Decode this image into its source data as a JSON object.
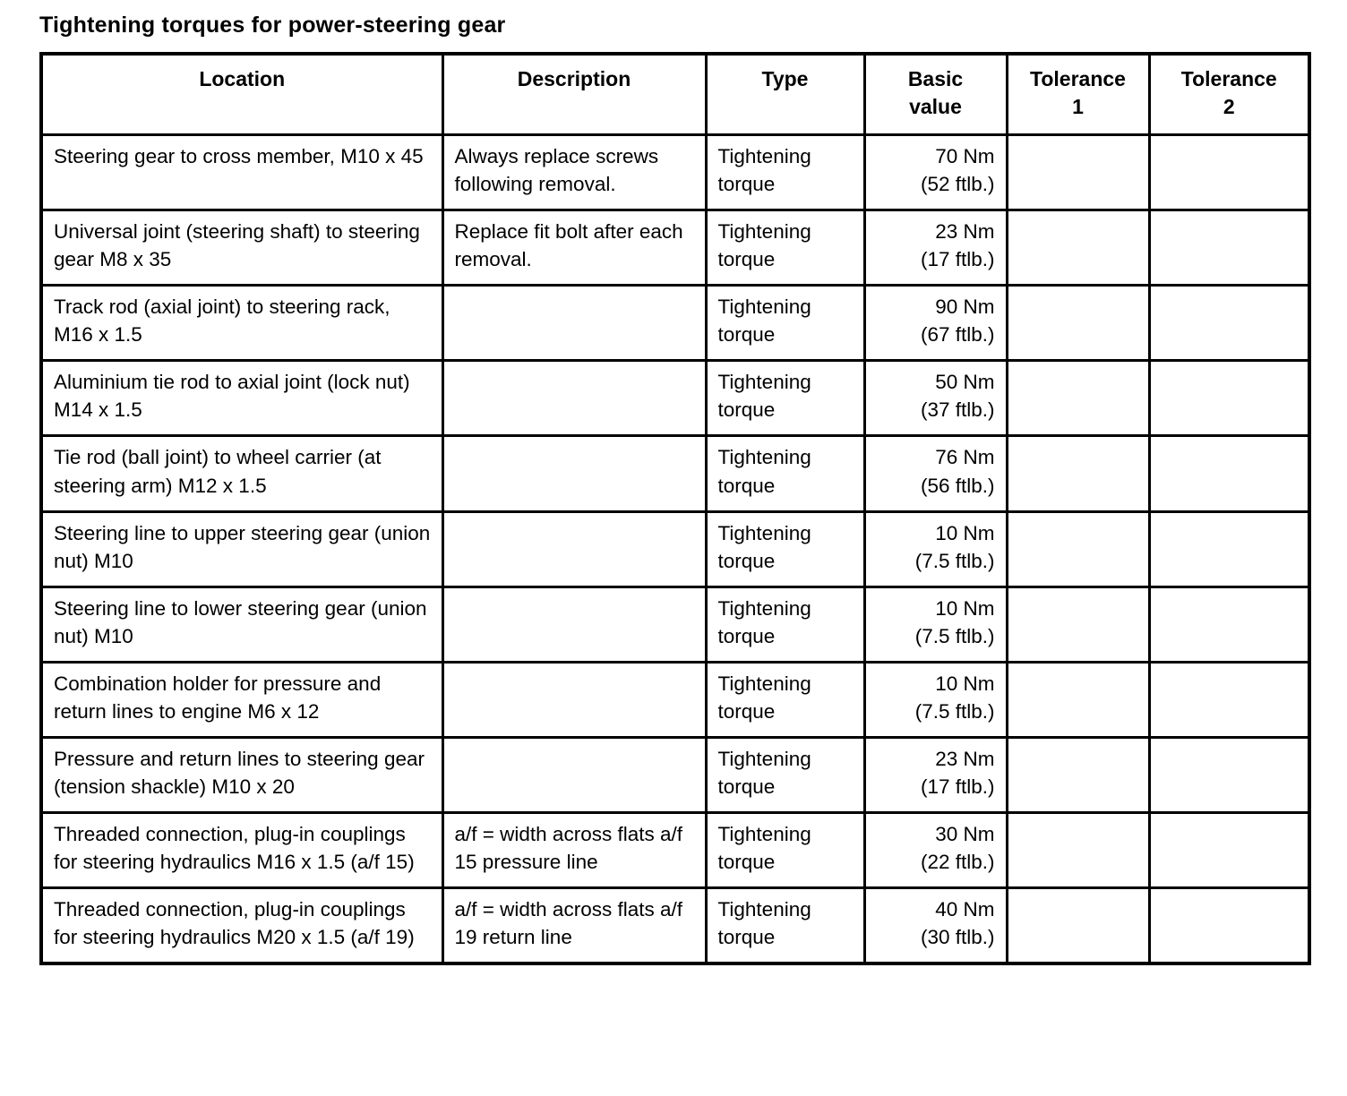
{
  "page": {
    "title": "Tightening torques for power-steering gear"
  },
  "table": {
    "headers": [
      "Location",
      "Description",
      "Type",
      "Basic\nvalue",
      "Tolerance\n1",
      "Tolerance\n2"
    ],
    "rows": [
      {
        "location": "Steering gear to cross member, M10 x 45",
        "description": "Always replace screws following removal.",
        "type": "Tightening\ntorque",
        "basic_value": "70 Nm\n(52 ftlb.)",
        "tolerance_1": "",
        "tolerance_2": ""
      },
      {
        "location": "Universal joint (steering shaft) to steering gear M8 x 35",
        "description": "Replace fit bolt after each removal.",
        "type": "Tightening\ntorque",
        "basic_value": "23 Nm\n(17 ftlb.)",
        "tolerance_1": "",
        "tolerance_2": ""
      },
      {
        "location": "Track rod (axial joint) to steering rack, M16 x 1.5",
        "description": "",
        "type": "Tightening\ntorque",
        "basic_value": "90 Nm\n(67 ftlb.)",
        "tolerance_1": "",
        "tolerance_2": ""
      },
      {
        "location": "Aluminium tie rod to axial joint (lock nut) M14 x 1.5",
        "description": "",
        "type": "Tightening\ntorque",
        "basic_value": "50 Nm\n(37 ftlb.)",
        "tolerance_1": "",
        "tolerance_2": ""
      },
      {
        "location": "Tie rod (ball joint) to wheel carrier (at steering arm) M12 x 1.5",
        "description": "",
        "type": "Tightening\ntorque",
        "basic_value": "76 Nm\n(56 ftlb.)",
        "tolerance_1": "",
        "tolerance_2": ""
      },
      {
        "location": "Steering line to upper steering gear (union nut) M10",
        "description": "",
        "type": "Tightening\ntorque",
        "basic_value": "10 Nm\n(7.5 ftlb.)",
        "tolerance_1": "",
        "tolerance_2": ""
      },
      {
        "location": "Steering line to lower steering gear (union nut) M10",
        "description": "",
        "type": "Tightening\ntorque",
        "basic_value": "10 Nm\n(7.5 ftlb.)",
        "tolerance_1": "",
        "tolerance_2": ""
      },
      {
        "location": "Combination holder for pressure and return lines to engine M6 x 12",
        "description": "",
        "type": "Tightening\ntorque",
        "basic_value": "10 Nm\n(7.5 ftlb.)",
        "tolerance_1": "",
        "tolerance_2": ""
      },
      {
        "location": "Pressure and return lines to steering gear (tension shackle) M10 x 20",
        "description": "",
        "type": "Tightening\ntorque",
        "basic_value": "23 Nm\n(17 ftlb.)",
        "tolerance_1": "",
        "tolerance_2": ""
      },
      {
        "location": "Threaded connection, plug-in couplings for steering hydraulics M16 x 1.5 (a/f 15)",
        "description": "a/f = width across flats a/f 15 pressure line",
        "type": "Tightening\ntorque",
        "basic_value": "30 Nm\n(22 ftlb.)",
        "tolerance_1": "",
        "tolerance_2": ""
      },
      {
        "location": "Threaded connection, plug-in couplings for steering hydraulics M20 x 1.5 (a/f 19)",
        "description": "a/f = width across flats a/f 19 return line",
        "type": "Tightening\ntorque",
        "basic_value": "40 Nm\n(30 ftlb.)",
        "tolerance_1": "",
        "tolerance_2": ""
      }
    ]
  }
}
